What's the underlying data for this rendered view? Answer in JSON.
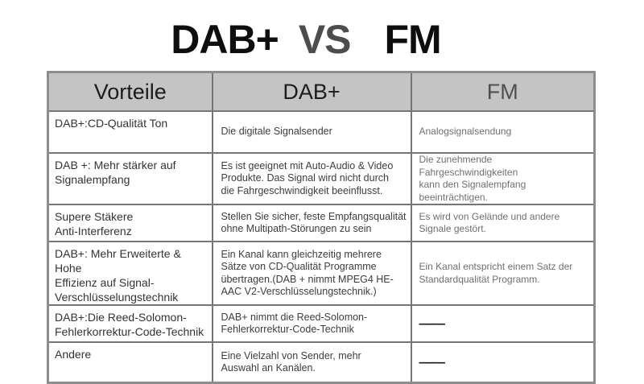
{
  "title": {
    "left": "DAB+",
    "vs": "VS",
    "right": "FM"
  },
  "table": {
    "headers": [
      "Vorteile",
      "DAB+",
      "FM"
    ],
    "rows": [
      {
        "vorteile": "DAB+:CD-Qualität Ton",
        "dab": "Die digitale Signalsender",
        "fm": "Analogsignalsendung"
      },
      {
        "vorteile": "DAB +: Mehr stärker auf\nSignalempfang",
        "dab": "Es ist geeignet mit Auto-Audio & Video\nProdukte. Das Signal wird nicht durch\ndie Fahrgeschwindigkeit beeinflusst.",
        "fm": "Die zunehmende Fahrgeschwindigkeiten\nkann den Signalempfang\nbeeinträchtigen."
      },
      {
        "vorteile": "Supere Stäkere\nAnti-Interferenz",
        "dab": "Stellen Sie sicher, feste Empfangsqualität\nohne Multipath-Störungen zu sein",
        "fm": "Es wird von Gelände und andere\nSignale gestört."
      },
      {
        "vorteile": "DAB+: Mehr Erweiterte & Hohe\nEffizienz auf Signal-\nVerschlüsselungstechnik",
        "dab": "Ein Kanal kann gleichzeitig mehrere\nSätze von CD-Qualität Programme\nübertragen.(DAB + nimmt MPEG4 HE-\nAAC V2-Verschlüsselungstechnik.)",
        "fm": "Ein Kanal entspricht einem Satz der\nStandardqualität Programm."
      },
      {
        "vorteile": "DAB+:Die Reed-Solomon-\nFehlerkorrektur-Code-Technik",
        "dab": "DAB+ nimmt die Reed-Solomon-\nFehlerkorrektur-Code-Technik",
        "fm": "——"
      },
      {
        "vorteile": "Andere",
        "dab": "Eine Vielzahl von Sender, mehr\nAuswahl an Kanälen.",
        "fm": "——"
      }
    ]
  },
  "colors": {
    "header_bg": "#c4c4c4",
    "outer_border": "#8d8d8d",
    "inner_border": "#757575",
    "fm_text": "#6f6f6f",
    "title_vs": "#4d4d4d"
  }
}
